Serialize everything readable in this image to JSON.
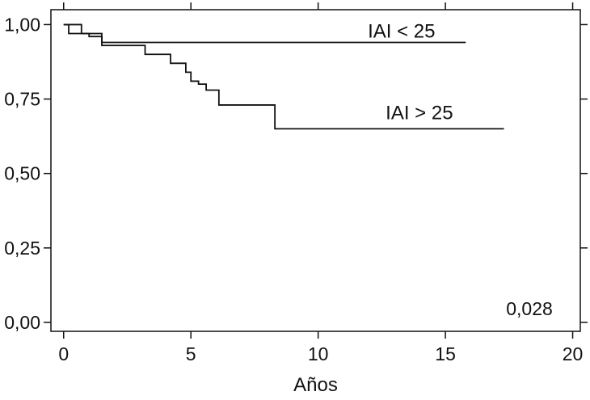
{
  "chart_data": {
    "type": "line",
    "xlabel": "Años",
    "ylabel": "",
    "xlim": [
      -0.5,
      20.3
    ],
    "ylim": [
      -0.03,
      1.05
    ],
    "grid": false,
    "x_ticks": [
      0,
      5,
      10,
      15,
      20
    ],
    "x_tick_labels": [
      "0",
      "5",
      "10",
      "15",
      "20"
    ],
    "y_ticks": [
      0.0,
      0.25,
      0.5,
      0.75,
      1.0
    ],
    "y_tick_labels": [
      "0,00",
      "0,25",
      "0,50",
      "0,75",
      "1,00"
    ],
    "series": [
      {
        "name": "IAI < 25",
        "step": true,
        "x": [
          0,
          0.2,
          1.0,
          1.5,
          15.8
        ],
        "y": [
          1.0,
          0.97,
          0.96,
          0.94,
          0.94
        ]
      },
      {
        "name": "IAI > 25",
        "step": true,
        "x": [
          0,
          0.7,
          1.5,
          3.2,
          4.2,
          4.8,
          5.0,
          5.3,
          5.6,
          6.1,
          8.3,
          17.3
        ],
        "y": [
          1.0,
          0.97,
          0.93,
          0.9,
          0.87,
          0.84,
          0.81,
          0.8,
          0.78,
          0.73,
          0.65,
          0.65
        ]
      }
    ],
    "annotation": "0,028"
  }
}
